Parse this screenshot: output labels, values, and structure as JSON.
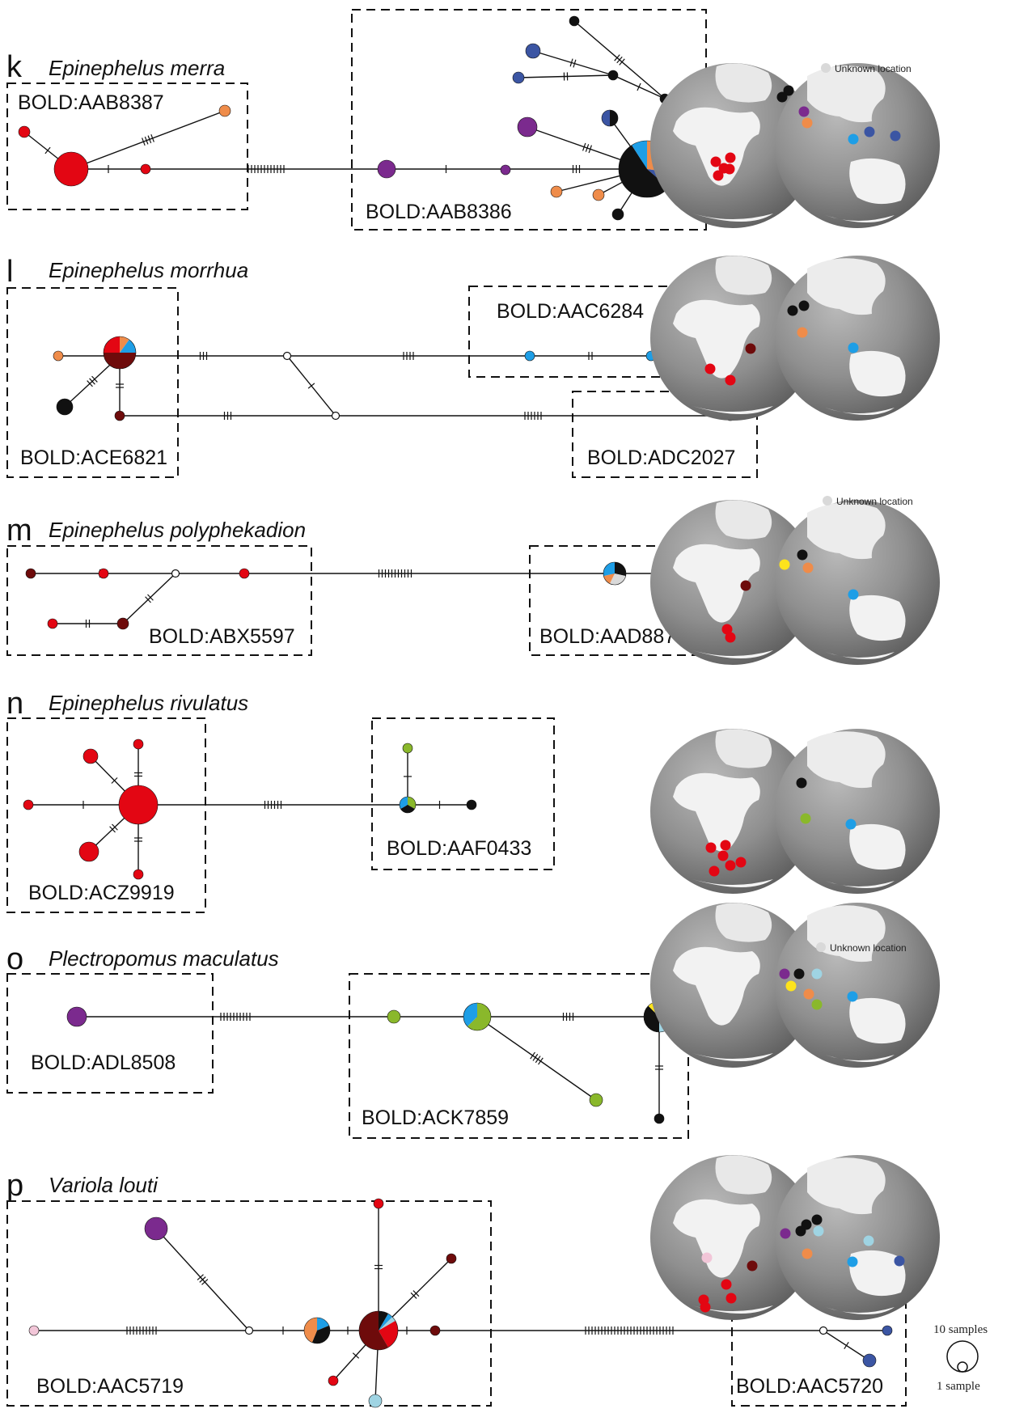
{
  "colors": {
    "red": "#e30613",
    "darkred": "#6e0b0b",
    "orange": "#ef8c4a",
    "purple": "#7b2a8e",
    "blue": "#3b55a3",
    "cyan": "#1e9ee6",
    "lightblue": "#9fd4e3",
    "green": "#8ab82b",
    "yellow": "#fde31c",
    "black": "#111111",
    "pink": "#f2c6d8",
    "grey": "#d9d9d9"
  },
  "legend": {
    "unknown_location": "Unknown location",
    "ten_samples": "10 samples",
    "one_sample": "1 sample"
  },
  "panels": [
    {
      "letter": "k",
      "species": "Epinephelus merra",
      "bins": [
        "BOLD:AAB8387",
        "BOLD:AAB8386"
      ],
      "unknown_location": true
    },
    {
      "letter": "l",
      "species": "Epinephelus morrhua",
      "bins": [
        "BOLD:AAC6284",
        "BOLD:ACE6821",
        "BOLD:ADC2027"
      ],
      "unknown_location": false
    },
    {
      "letter": "m",
      "species": "Epinephelus polyphekadion",
      "bins": [
        "BOLD:ABX5597",
        "BOLD:AAD8873"
      ],
      "unknown_location": true
    },
    {
      "letter": "n",
      "species": "Epinephelus rivulatus",
      "bins": [
        "BOLD:AAF0433",
        "BOLD:ACZ9919"
      ],
      "unknown_location": false
    },
    {
      "letter": "o",
      "species": "Plectropomus maculatus",
      "bins": [
        "BOLD:ADL8508",
        "BOLD:ACK7859"
      ],
      "unknown_location": true
    },
    {
      "letter": "p",
      "species": "Variola louti",
      "bins": [
        "BOLD:AAC5719",
        "BOLD:AAC5720"
      ],
      "unknown_location": false
    }
  ]
}
